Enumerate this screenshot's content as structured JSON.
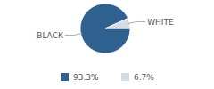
{
  "chart_data": {
    "type": "pie",
    "categories": [
      "BLACK",
      "WHITE"
    ],
    "values": [
      93.3,
      6.7
    ],
    "value_labels": [
      "93.3%",
      "6.7%"
    ],
    "colors": [
      "#2f6190",
      "#d6dce6"
    ],
    "legend": "bottom"
  }
}
